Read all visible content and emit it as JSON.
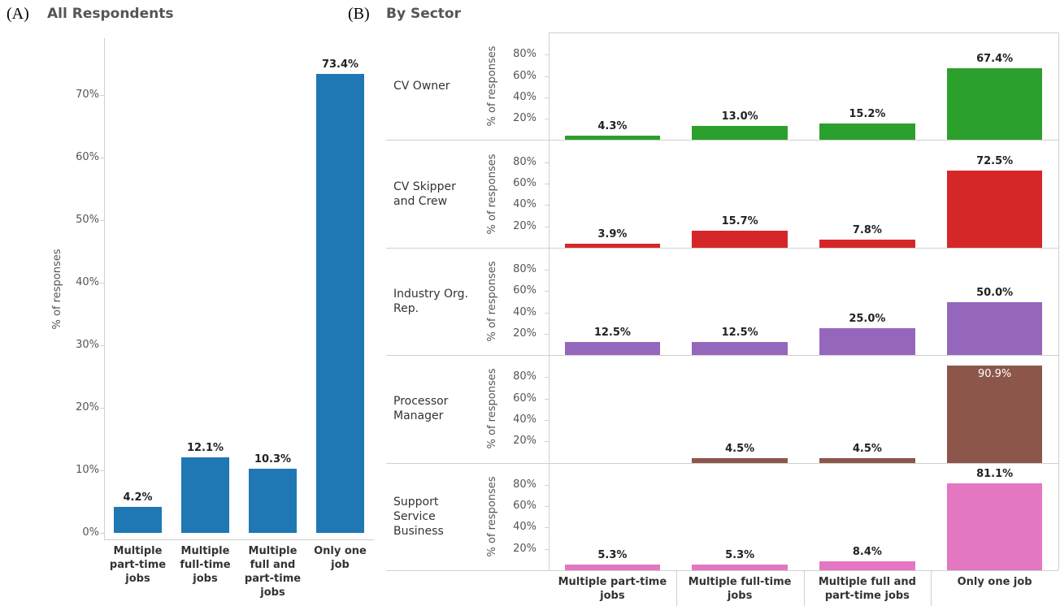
{
  "chart_data": [
    {
      "type": "bar",
      "panel": "(A)",
      "title": "All Respondents",
      "y_label": "% of responses",
      "categories": [
        "Multiple part-time jobs",
        "Multiple full-time jobs",
        "Multiple full and part-time jobs",
        "Only one job"
      ],
      "values": [
        4.2,
        12.1,
        10.3,
        73.4
      ],
      "value_labels": [
        "4.2%",
        "12.1%",
        "10.3%",
        "73.4%"
      ],
      "color": "#1f77b4",
      "ylim": [
        -1,
        79
      ],
      "yticks": [
        {
          "value": 0,
          "label": "0%"
        },
        {
          "value": 10,
          "label": "10%"
        },
        {
          "value": 20,
          "label": "20%"
        },
        {
          "value": 30,
          "label": "30%"
        },
        {
          "value": 40,
          "label": "40%"
        },
        {
          "value": 50,
          "label": "50%"
        },
        {
          "value": 60,
          "label": "60%"
        },
        {
          "value": 70,
          "label": "70%"
        }
      ]
    },
    {
      "type": "bar",
      "panel": "(B)",
      "title": "By Sector",
      "y_label": "% of responses",
      "categories": [
        "Multiple part-time jobs",
        "Multiple full-time jobs",
        "Multiple full and part-time jobs",
        "Only one job"
      ],
      "series": [
        {
          "name": "CV Owner",
          "color": "#2ca02c",
          "values": [
            4.3,
            13.0,
            15.2,
            67.4
          ],
          "value_labels": [
            "4.3%",
            "13.0%",
            "15.2%",
            "67.4%"
          ]
        },
        {
          "name": "CV Skipper and Crew",
          "color": "#d62728",
          "values": [
            3.9,
            15.7,
            7.8,
            72.5
          ],
          "value_labels": [
            "3.9%",
            "15.7%",
            "7.8%",
            "72.5%"
          ]
        },
        {
          "name": "Industry Org. Rep.",
          "color": "#9467bd",
          "values": [
            12.5,
            12.5,
            25.0,
            50.0
          ],
          "value_labels": [
            "12.5%",
            "12.5%",
            "25.0%",
            "50.0%"
          ]
        },
        {
          "name": "Processor Manager",
          "color": "#8c564b",
          "values": [
            null,
            4.5,
            4.5,
            90.9
          ],
          "value_labels": [
            null,
            "4.5%",
            "4.5%",
            "90.9%"
          ]
        },
        {
          "name": "Support Service Business",
          "color": "#e377c2",
          "values": [
            5.3,
            5.3,
            8.4,
            81.1
          ],
          "value_labels": [
            "5.3%",
            "5.3%",
            "8.4%",
            "81.1%"
          ]
        }
      ],
      "ylim": [
        0,
        100
      ],
      "yticks": [
        {
          "value": 20,
          "label": "20%"
        },
        {
          "value": 40,
          "label": "40%"
        },
        {
          "value": 60,
          "label": "60%"
        },
        {
          "value": 80,
          "label": "80%"
        }
      ]
    }
  ]
}
